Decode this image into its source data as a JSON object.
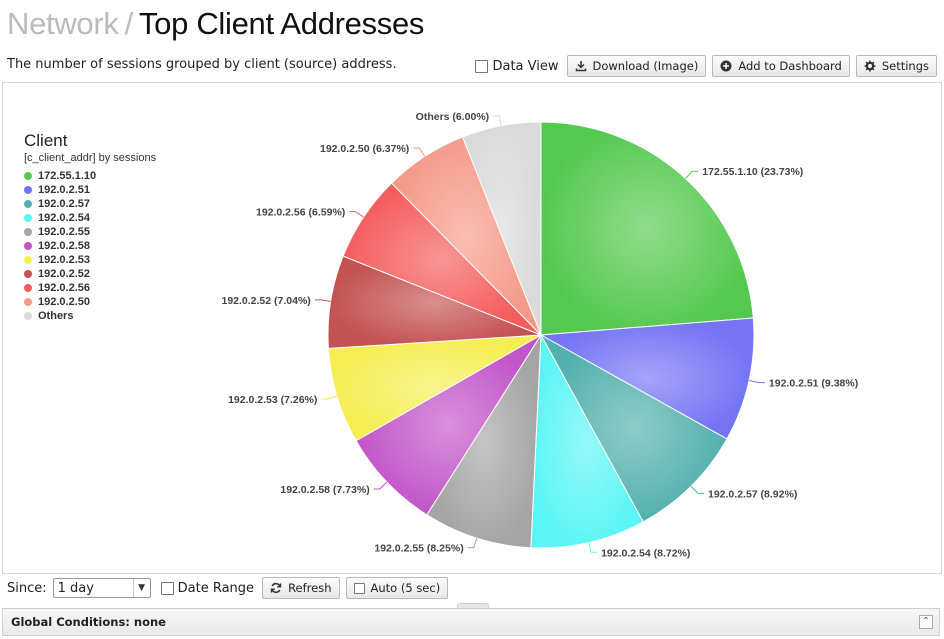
{
  "header": {
    "breadcrumb": "Network",
    "separator": "/",
    "title": "Top Client Addresses"
  },
  "subtitle": "The number of sessions grouped by client (source) address.",
  "toolbar": {
    "data_view_label": "Data View",
    "download_label": "Download (Image)",
    "add_dashboard_label": "Add to Dashboard",
    "settings_label": "Settings"
  },
  "legend": {
    "title": "Client",
    "subtitle": "[c_client_addr] by sessions"
  },
  "chart_data": {
    "type": "pie",
    "title": "Client",
    "subtitle": "[c_client_addr] by sessions",
    "categories": [
      "172.55.1.10",
      "192.0.2.51",
      "192.0.2.57",
      "192.0.2.54",
      "192.0.2.55",
      "192.0.2.58",
      "192.0.2.53",
      "192.0.2.52",
      "192.0.2.56",
      "192.0.2.50",
      "Others"
    ],
    "values": [
      23.73,
      9.38,
      8.92,
      8.72,
      8.25,
      7.73,
      7.26,
      7.04,
      6.59,
      6.37,
      6.0
    ],
    "labels": [
      "172.55.1.10 (23.73%)",
      "192.0.2.51 (9.38%)",
      "192.0.2.57 (8.92%)",
      "192.0.2.54 (8.72%)",
      "192.0.2.55 (8.25%)",
      "192.0.2.58 (7.73%)",
      "192.0.2.53 (7.26%)",
      "192.0.2.52 (7.04%)",
      "192.0.2.56 (6.59%)",
      "192.0.2.50 (6.37%)",
      "Others (6.00%)"
    ],
    "colors": [
      "#55c94f",
      "#7474f5",
      "#52b0ae",
      "#5cf5f5",
      "#a5a5a5",
      "#c255c9",
      "#f5ee52",
      "#c45252",
      "#f55c5c",
      "#f59a89",
      "#dadada"
    ],
    "legend_position": "left"
  },
  "controls": {
    "since_label": "Since:",
    "since_value": "1 day",
    "date_range_label": "Date Range",
    "refresh_label": "Refresh",
    "auto_label": "Auto (5 sec)"
  },
  "footer": {
    "global_conditions": "Global Conditions: none"
  }
}
